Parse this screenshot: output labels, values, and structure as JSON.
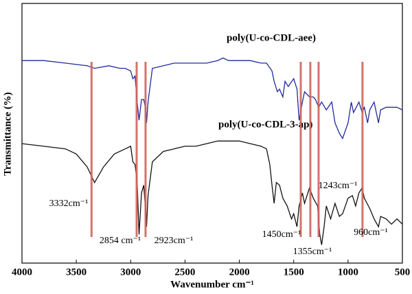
{
  "chart_data": {
    "type": "line",
    "xlabel": "Wavenumber cm⁻¹",
    "ylabel": "Transmittance (%)",
    "xlim": [
      4000,
      500
    ],
    "xticks": [
      4000,
      3500,
      3000,
      2500,
      2000,
      1500,
      1000,
      500
    ],
    "ylim": [
      0,
      100
    ],
    "series": [
      {
        "name": "poly(U-co-CDL-aee)",
        "color": "#1f2a9c",
        "x": [
          4000,
          3800,
          3600,
          3400,
          3332,
          3200,
          3100,
          3050,
          3000,
          2980,
          2960,
          2940,
          2923,
          2900,
          2880,
          2860,
          2854,
          2840,
          2800,
          2700,
          2600,
          2500,
          2400,
          2300,
          2200,
          2150,
          2100,
          2000,
          1900,
          1800,
          1750,
          1700,
          1680,
          1650,
          1630,
          1600,
          1580,
          1550,
          1500,
          1470,
          1450,
          1420,
          1400,
          1355,
          1320,
          1300,
          1270,
          1243,
          1200,
          1150,
          1120,
          1080,
          1050,
          1000,
          970,
          950,
          900,
          870,
          850,
          820,
          800,
          760,
          720,
          700,
          650,
          600,
          550,
          500
        ],
        "values": [
          78,
          78,
          77,
          76,
          75,
          76,
          75,
          75,
          74,
          71,
          72,
          62,
          55,
          63,
          63,
          59,
          54,
          62,
          75,
          76,
          77,
          77,
          77,
          77,
          78,
          79,
          78,
          78,
          78,
          77,
          77,
          74,
          70,
          66,
          67,
          64,
          70,
          68,
          71,
          67,
          55,
          62,
          66,
          64,
          64,
          63,
          60,
          62,
          59,
          62,
          54,
          50,
          48,
          54,
          62,
          58,
          62,
          58,
          60,
          54,
          59,
          62,
          54,
          59,
          60,
          60,
          60,
          59
        ]
      },
      {
        "name": "poly(U-co-CDL-3-ap)",
        "color": "#111111",
        "x": [
          4000,
          3800,
          3600,
          3500,
          3400,
          3332,
          3250,
          3150,
          3050,
          3000,
          2980,
          2960,
          2940,
          2923,
          2900,
          2880,
          2860,
          2854,
          2840,
          2800,
          2700,
          2600,
          2500,
          2400,
          2300,
          2200,
          2100,
          2000,
          1900,
          1800,
          1750,
          1720,
          1700,
          1680,
          1660,
          1630,
          1600,
          1560,
          1520,
          1500,
          1470,
          1450,
          1420,
          1400,
          1355,
          1320,
          1280,
          1260,
          1243,
          1220,
          1200,
          1160,
          1120,
          1080,
          1050,
          1000,
          960,
          930,
          900,
          870,
          850,
          800,
          760,
          720,
          700,
          650,
          600,
          550,
          500
        ],
        "values": [
          46,
          45,
          44,
          42,
          37,
          31,
          37,
          42,
          44,
          45,
          39,
          38,
          31,
          11,
          27,
          30,
          19,
          14,
          26,
          39,
          43,
          44,
          45,
          45,
          46,
          47,
          47,
          47,
          46,
          45,
          44,
          38,
          30,
          23,
          31,
          30,
          25,
          22,
          17,
          19,
          14,
          22,
          27,
          23,
          29,
          25,
          22,
          11,
          7,
          14,
          22,
          17,
          23,
          18,
          19,
          25,
          26,
          22,
          27,
          29,
          25,
          21,
          17,
          14,
          18,
          17,
          15,
          17,
          15
        ]
      }
    ],
    "markers": [
      {
        "x": 3360,
        "label": "3332cm⁻¹"
      },
      {
        "x": 2945,
        "label": "2854 cm⁻¹"
      },
      {
        "x": 2863,
        "label": "2923cm⁻¹"
      },
      {
        "x": 1435,
        "label": "1450cm⁻¹"
      },
      {
        "x": 1347,
        "label": "1355cm⁻¹"
      },
      {
        "x": 1271,
        "label": "1243cm⁻¹"
      },
      {
        "x": 867,
        "label": "960cm⁻¹"
      }
    ],
    "marker_color": "#d0645a"
  }
}
